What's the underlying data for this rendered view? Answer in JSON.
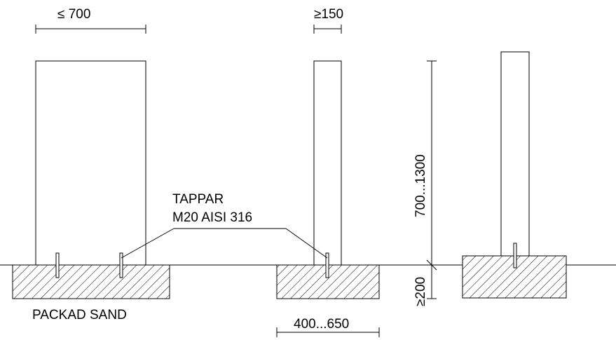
{
  "diagram": {
    "labels": {
      "width_max": "≤ 700",
      "width_min": "≥150",
      "height_range": "700...1300",
      "depth_min": "≥200",
      "pad_width_range": "400...650",
      "dowel_title": "TAPPAR",
      "dowel_spec": "M20 AISI 316",
      "base_material": "PACKAD SAND"
    },
    "colors": {
      "line": "#000000",
      "background": "#ffffff"
    }
  }
}
